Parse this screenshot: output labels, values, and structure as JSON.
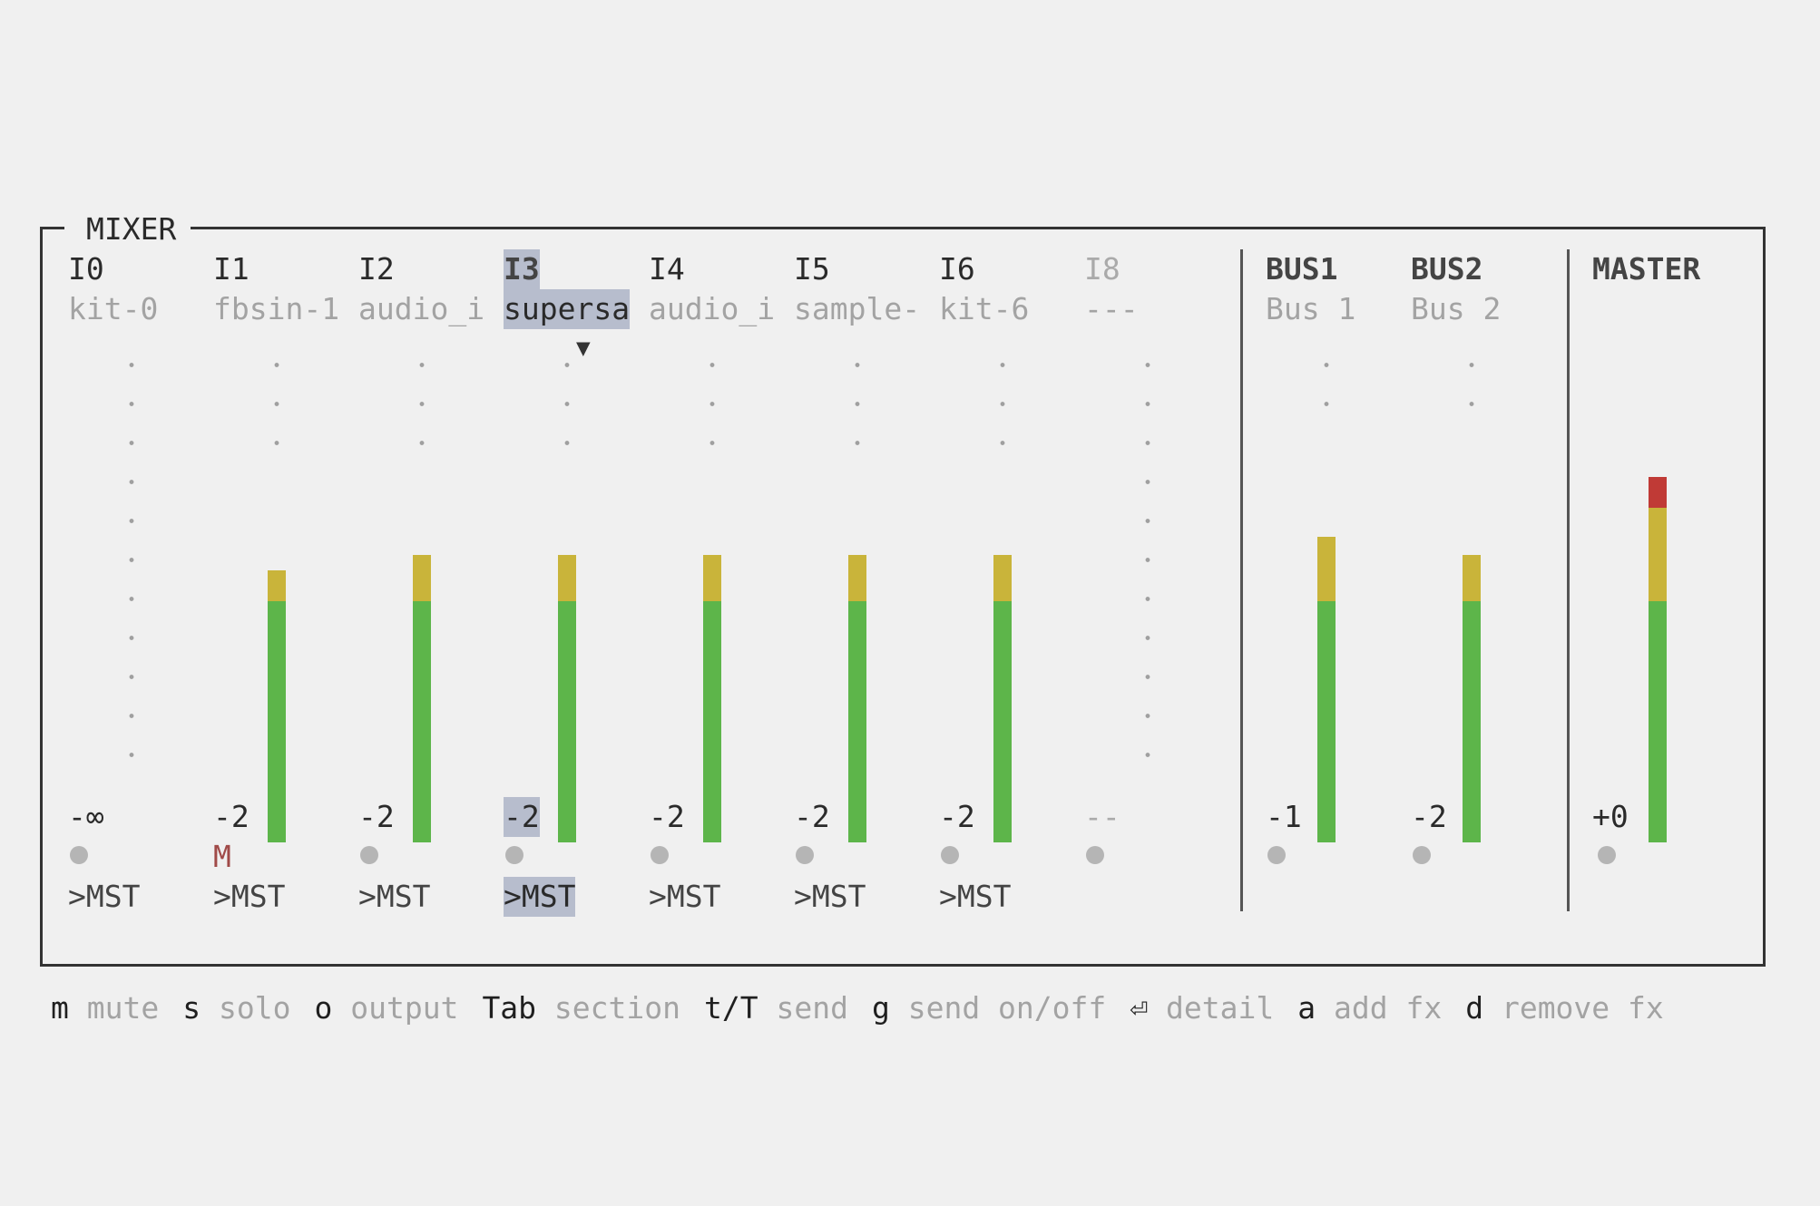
{
  "title": "MIXER",
  "channels": [
    {
      "name": "I0",
      "inst": "kit-0",
      "db": "-∞",
      "state": "dot",
      "out": ">MST",
      "meter": null,
      "selected": false,
      "active": true,
      "dots": true
    },
    {
      "name": "I1",
      "inst": "fbsin-1",
      "db": "-2",
      "state": "M",
      "out": ">MST",
      "meter": {
        "green": 0.47,
        "yellow": 0.06,
        "red": 0
      },
      "selected": false,
      "active": true,
      "dots": true
    },
    {
      "name": "I2",
      "inst": "audio_i",
      "db": "-2",
      "state": "dot",
      "out": ">MST",
      "meter": {
        "green": 0.47,
        "yellow": 0.09,
        "red": 0
      },
      "selected": false,
      "active": true,
      "dots": true
    },
    {
      "name": "I3",
      "inst": "supersa",
      "db": "-2",
      "state": "dot",
      "out": ">MST",
      "meter": {
        "green": 0.47,
        "yellow": 0.09,
        "red": 0
      },
      "selected": true,
      "active": true,
      "dots": true
    },
    {
      "name": "I4",
      "inst": "audio_i",
      "db": "-2",
      "state": "dot",
      "out": ">MST",
      "meter": {
        "green": 0.47,
        "yellow": 0.09,
        "red": 0
      },
      "selected": false,
      "active": true,
      "dots": true
    },
    {
      "name": "I5",
      "inst": "sample-",
      "db": "-2",
      "state": "dot",
      "out": ">MST",
      "meter": {
        "green": 0.47,
        "yellow": 0.09,
        "red": 0
      },
      "selected": false,
      "active": true,
      "dots": true
    },
    {
      "name": "I6",
      "inst": "kit-6",
      "db": "-2",
      "state": "dot",
      "out": ">MST",
      "meter": {
        "green": 0.47,
        "yellow": 0.09,
        "red": 0
      },
      "selected": false,
      "active": true,
      "dots": true
    },
    {
      "name": "I8",
      "inst": "---",
      "db": "--",
      "state": "dot",
      "out": "",
      "meter": null,
      "selected": false,
      "active": false,
      "dots": true
    }
  ],
  "buses": [
    {
      "name": "BUS1",
      "inst": "Bus 1",
      "db": "-1",
      "meter": {
        "green": 0.47,
        "yellow": 0.125,
        "red": 0
      }
    },
    {
      "name": "BUS2",
      "inst": "Bus 2",
      "db": "-2",
      "meter": {
        "green": 0.47,
        "yellow": 0.09,
        "red": 0
      }
    }
  ],
  "master": {
    "name": "MASTER",
    "db": "+0",
    "meter": {
      "green": 0.47,
      "yellow": 0.18,
      "red": 0.06
    }
  },
  "selected_marker": "▼",
  "footer": [
    {
      "key": "m",
      "desc": "mute"
    },
    {
      "key": "s",
      "desc": "solo"
    },
    {
      "key": "o",
      "desc": "output"
    },
    {
      "key": "Tab",
      "desc": "section"
    },
    {
      "key": "t/T",
      "desc": "send"
    },
    {
      "key": "g",
      "desc": "send on/off"
    },
    {
      "key": "⏎",
      "desc": "detail"
    },
    {
      "key": "a",
      "desc": "add fx"
    },
    {
      "key": "d",
      "desc": "remove fx"
    }
  ]
}
